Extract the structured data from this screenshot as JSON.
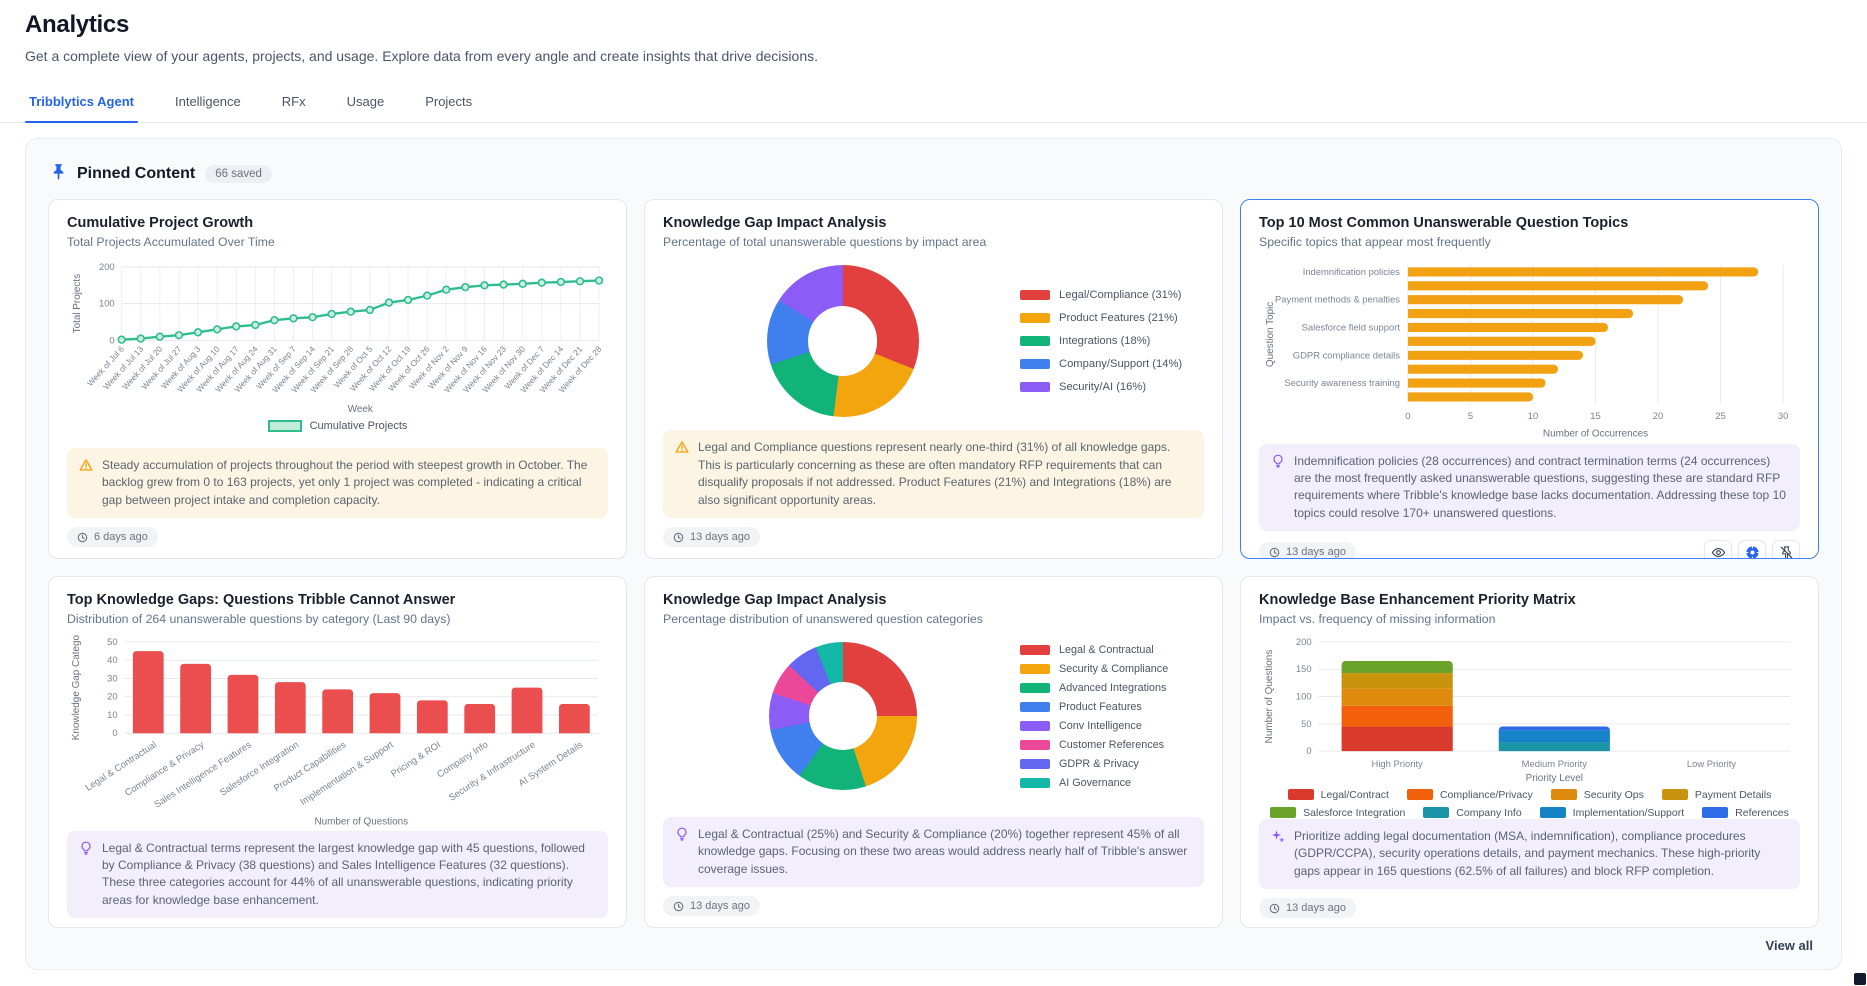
{
  "page": {
    "title": "Analytics",
    "subtitle": "Get a complete view of your agents, projects, and usage. Explore data from every angle and create insights that drive decisions.",
    "accent_color": "#2563eb",
    "tabs": [
      {
        "label": "Tribblytics Agent",
        "active": true
      },
      {
        "label": "Intelligence",
        "active": false
      },
      {
        "label": "RFx",
        "active": false
      },
      {
        "label": "Usage",
        "active": false
      },
      {
        "label": "Projects",
        "active": false
      }
    ]
  },
  "pinned": {
    "title": "Pinned Content",
    "badge": "66 saved",
    "view_all_label": "View all"
  },
  "cards": [
    {
      "title": "Cumulative Project Growth",
      "subtitle": "Total Projects Accumulated Over Time",
      "timestamp": "6 days ago",
      "annotation": {
        "icon": "warning",
        "text": "Steady accumulation of projects throughout the period with steepest growth in October. The backlog grew from 0 to 163 projects, yet only 1 project was completed - indicating a critical gap between project intake and completion capacity."
      },
      "chart_data": {
        "type": "line",
        "xlabel": "Week",
        "ylabel": "Total Projects",
        "ylim": [
          0,
          200
        ],
        "yticks": [
          0,
          100,
          200
        ],
        "color": "#2fbd8f",
        "legend": "Cumulative Projects",
        "categories": [
          "Week of Jul 6",
          "Week of Jul 13",
          "Week of Jul 20",
          "Week of Jul 27",
          "Week of Aug 3",
          "Week of Aug 10",
          "Week of Aug 17",
          "Week of Aug 24",
          "Week of Aug 31",
          "Week of Sep 7",
          "Week of Sep 14",
          "Week of Sep 21",
          "Week of Sep 28",
          "Week of Oct 5",
          "Week of Oct 12",
          "Week of Oct 19",
          "Week of Oct 26",
          "Week of Nov 2",
          "Week of Nov 9",
          "Week of Nov 16",
          "Week of Nov 23",
          "Week of Nov 30",
          "Week of Dec 7",
          "Week of Dec 14",
          "Week of Dec 21",
          "Week of Dec 28"
        ],
        "values": [
          2,
          5,
          10,
          14,
          22,
          30,
          38,
          42,
          55,
          60,
          63,
          72,
          78,
          83,
          103,
          110,
          122,
          138,
          145,
          150,
          152,
          154,
          157,
          159,
          161,
          163
        ]
      }
    },
    {
      "title": "Knowledge Gap Impact Analysis",
      "subtitle": "Percentage of total unanswerable questions by impact area",
      "timestamp": "13 days ago",
      "annotation": {
        "icon": "warning",
        "text": "Legal and Compliance questions represent nearly one-third (31%) of all knowledge gaps. This is particularly concerning as these are often mandatory RFP requirements that can disqualify proposals if not addressed. Product Features (21%) and Integrations (18%) are also significant opportunity areas."
      },
      "chart_data": {
        "type": "donut",
        "size": 152,
        "slices": [
          {
            "label": "Legal/Compliance (31%)",
            "value": 31,
            "color": "#e23f3f"
          },
          {
            "label": "Product Features (21%)",
            "value": 21,
            "color": "#f2a50c"
          },
          {
            "label": "Integrations (18%)",
            "value": 18,
            "color": "#12b379"
          },
          {
            "label": "Company/Support (14%)",
            "value": 14,
            "color": "#4080ee"
          },
          {
            "label": "Security/AI (16%)",
            "value": 16,
            "color": "#8b5cf6"
          }
        ]
      }
    },
    {
      "title": "Top 10 Most Common Unanswerable Question Topics",
      "subtitle": "Specific topics that appear most frequently",
      "timestamp": "13 days ago",
      "highlighted": true,
      "actions": [
        "eye",
        "insights",
        "unpin"
      ],
      "annotation": {
        "icon": "bulb",
        "text": "Indemnification policies (28 occurrences) and contract termination terms (24 occurrences) are the most frequently asked unanswerable questions, suggesting these are standard RFP requirements where Tribble's knowledge base lacks documentation. Addressing these top 10 topics could resolve 170+ unanswered questions."
      },
      "chart_data": {
        "type": "hbar",
        "xlabel": "Number of Occurrences",
        "ylabel": "Question Topic",
        "xlim": [
          0,
          30
        ],
        "xticks": [
          0,
          5,
          10,
          15,
          20,
          25,
          30
        ],
        "color": "#f2a113",
        "bars": [
          {
            "label": "Indemnification policies",
            "value": 28
          },
          {
            "label": "",
            "value": 24
          },
          {
            "label": "Payment methods & penalties",
            "value": 22
          },
          {
            "label": "",
            "value": 18
          },
          {
            "label": "Salesforce field support",
            "value": 16
          },
          {
            "label": "",
            "value": 15
          },
          {
            "label": "GDPR compliance details",
            "value": 14
          },
          {
            "label": "",
            "value": 12
          },
          {
            "label": "Security awareness training",
            "value": 11
          },
          {
            "label": "",
            "value": 10
          }
        ]
      }
    },
    {
      "title": "Top Knowledge Gaps: Questions Tribble Cannot Answer",
      "subtitle": "Distribution of 264 unanswerable questions by category (Last 90 days)",
      "timestamp": "13 days ago",
      "annotation": {
        "icon": "bulb",
        "text": "Legal & Contractual terms represent the largest knowledge gap with 45 questions, followed by Compliance & Privacy (38 questions) and Sales Intelligence Features (32 questions). These three categories account for 44% of all unanswerable questions, indicating priority areas for knowledge base enhancement."
      },
      "chart_data": {
        "type": "vbar",
        "xlabel": "Number of Questions",
        "ylabel": "Knowledge Gap Catego",
        "ylim": [
          0,
          50
        ],
        "yticks": [
          0,
          10,
          20,
          30,
          40,
          50
        ],
        "color": "#ea4e4e",
        "categories": [
          "Legal & Contractual",
          "Compliance & Privacy",
          "Sales Intelligence Features",
          "Salesforce Integration",
          "Product Capabilities",
          "Implementation & Support",
          "Pricing & ROI",
          "Company Info",
          "Security & Infrastructure",
          "AI System Details"
        ],
        "values": [
          45,
          38,
          32,
          28,
          24,
          22,
          18,
          16,
          25,
          16
        ]
      }
    },
    {
      "title": "Knowledge Gap Impact Analysis",
      "subtitle": "Percentage distribution of unanswered question categories",
      "timestamp": "13 days ago",
      "annotation": {
        "icon": "bulb",
        "text": "Legal & Contractual (25%) and Security & Compliance (20%) together represent 45% of all knowledge gaps. Focusing on these two areas would address nearly half of Tribble's answer coverage issues."
      },
      "chart_data": {
        "type": "donut",
        "size": 148,
        "slices": [
          {
            "label": "Legal & Contractual",
            "value": 25,
            "color": "#e23f3f"
          },
          {
            "label": "Security & Compliance",
            "value": 20,
            "color": "#f2a50c"
          },
          {
            "label": "Advanced Integrations",
            "value": 15,
            "color": "#12b379"
          },
          {
            "label": "Product Features",
            "value": 12,
            "color": "#4080ee"
          },
          {
            "label": "Conv Intelligence",
            "value": 8,
            "color": "#8b5cf6"
          },
          {
            "label": "Customer References",
            "value": 7,
            "color": "#ec4899"
          },
          {
            "label": "GDPR & Privacy",
            "value": 7,
            "color": "#6366f1"
          },
          {
            "label": "AI Governance",
            "value": 6,
            "color": "#14b8a6"
          }
        ]
      }
    },
    {
      "title": "Knowledge Base Enhancement Priority Matrix",
      "subtitle": "Impact vs. frequency of missing information",
      "timestamp": "13 days ago",
      "annotation": {
        "icon": "sparkle",
        "text": "Prioritize adding legal documentation (MSA, indemnification), compliance procedures (GDPR/CCPA), security operations details, and payment mechanics. These high-priority gaps appear in 165 questions (62.5% of all failures) and block RFP completion."
      },
      "chart_data": {
        "type": "stacked",
        "xlabel": "Priority Level",
        "ylabel": "Number of Questions",
        "ylim": [
          0,
          200
        ],
        "yticks": [
          0,
          50,
          100,
          150,
          200
        ],
        "categories": [
          "High Priority",
          "Medium Priority",
          "Low Priority"
        ],
        "series": [
          {
            "name": "Legal/Contract",
            "color": "#d93a2b",
            "values": [
              45,
              0,
              0
            ]
          },
          {
            "name": "Compliance/Privacy",
            "color": "#f2600c",
            "values": [
              38,
              0,
              0
            ]
          },
          {
            "name": "Security Ops",
            "color": "#de8a0d",
            "values": [
              32,
              0,
              0
            ]
          },
          {
            "name": "Payment Details",
            "color": "#c9940d",
            "values": [
              28,
              0,
              0
            ]
          },
          {
            "name": "Salesforce Integration",
            "color": "#6ba32a",
            "values": [
              22,
              0,
              0
            ]
          },
          {
            "name": "Company Info",
            "color": "#1b94a8",
            "values": [
              0,
              16,
              0
            ]
          },
          {
            "name": "Implementation/Support",
            "color": "#1682c8",
            "values": [
              0,
              22,
              0
            ]
          },
          {
            "name": "References",
            "color": "#2e6be6",
            "values": [
              0,
              7,
              0
            ]
          }
        ],
        "legend_rows": [
          4,
          4
        ]
      }
    }
  ]
}
